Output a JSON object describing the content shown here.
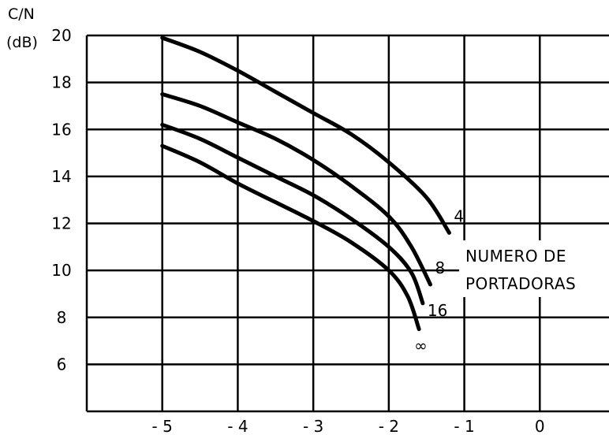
{
  "chart_data": {
    "type": "line",
    "ylabel_line1": "C/N",
    "ylabel_line2": "(dB)",
    "legend_title_line1": "NUMERO DE",
    "legend_title_line2": "PORTADORAS",
    "xlim": [
      -6,
      1
    ],
    "ylim": [
      4,
      20
    ],
    "x_ticks": [
      -6,
      -5,
      -4,
      -3,
      -2,
      -1,
      0,
      1
    ],
    "x_tick_labels": [
      "- 5",
      "- 4",
      "- 3",
      "- 2",
      "- 1",
      "0"
    ],
    "x_tick_label_values": [
      -5,
      -4,
      -3,
      -2,
      -1,
      0
    ],
    "y_ticks": [
      4,
      6,
      8,
      10,
      12,
      14,
      16,
      18,
      20
    ],
    "y_tick_labels": [
      "20",
      "18",
      "16",
      "14",
      "12",
      "10",
      "8",
      "6"
    ],
    "y_tick_label_values": [
      20,
      18,
      16,
      14,
      12,
      10,
      8,
      6
    ],
    "grid": true,
    "series": [
      {
        "name": "4",
        "points": [
          [
            -5,
            19.9
          ],
          [
            -4.5,
            19.3
          ],
          [
            -4,
            18.5
          ],
          [
            -3.5,
            17.6
          ],
          [
            -3,
            16.7
          ],
          [
            -2.5,
            15.8
          ],
          [
            -2,
            14.6
          ],
          [
            -1.5,
            13.1
          ],
          [
            -1.2,
            11.6
          ]
        ]
      },
      {
        "name": "8",
        "points": [
          [
            -5,
            17.5
          ],
          [
            -4.5,
            17.0
          ],
          [
            -4,
            16.3
          ],
          [
            -3.5,
            15.6
          ],
          [
            -3,
            14.7
          ],
          [
            -2.5,
            13.6
          ],
          [
            -2,
            12.3
          ],
          [
            -1.7,
            11.0
          ],
          [
            -1.45,
            9.4
          ]
        ]
      },
      {
        "name": "16",
        "points": [
          [
            -5,
            16.2
          ],
          [
            -4.5,
            15.6
          ],
          [
            -4,
            14.8
          ],
          [
            -3.5,
            14.0
          ],
          [
            -3,
            13.2
          ],
          [
            -2.5,
            12.2
          ],
          [
            -2,
            11.0
          ],
          [
            -1.7,
            9.9
          ],
          [
            -1.55,
            8.6
          ]
        ]
      },
      {
        "name": "∞",
        "points": [
          [
            -5,
            15.3
          ],
          [
            -4.5,
            14.6
          ],
          [
            -4,
            13.7
          ],
          [
            -3.5,
            12.9
          ],
          [
            -3,
            12.1
          ],
          [
            -2.5,
            11.2
          ],
          [
            -2,
            10.0
          ],
          [
            -1.75,
            8.9
          ],
          [
            -1.6,
            7.5
          ]
        ]
      }
    ]
  }
}
